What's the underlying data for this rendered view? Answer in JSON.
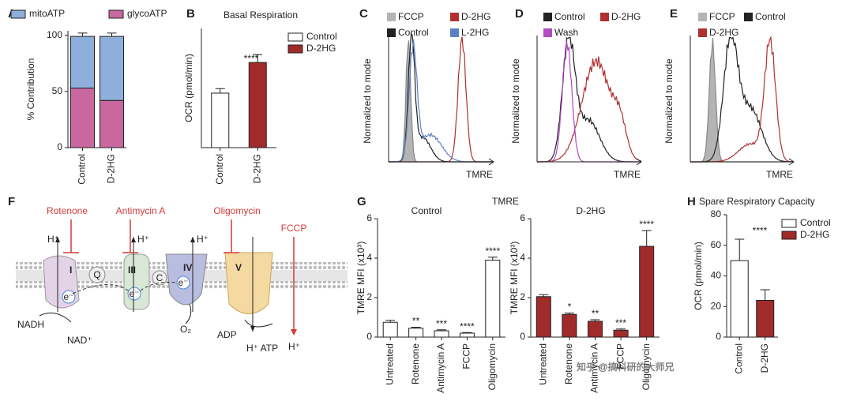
{
  "chart_data": [
    {
      "type": "stacked_bar",
      "panel": "A",
      "ylabel": "% Contribution",
      "categories": [
        "Control",
        "D-2HG"
      ],
      "series": [
        {
          "name": "glycoATP",
          "color": "#c9679f",
          "values": [
            53,
            42
          ],
          "errors": [
            4,
            3
          ]
        },
        {
          "name": "mitoATP",
          "color": "#8eaedb",
          "values": [
            46,
            57
          ],
          "errors": [
            3,
            3
          ]
        }
      ],
      "ylim": [
        0,
        104
      ],
      "yticks": [
        0,
        50,
        100
      ]
    },
    {
      "type": "bar",
      "panel": "B",
      "title": "Basal Respiration",
      "ylabel": "OCR (pmol/min)",
      "categories": [
        "Control",
        "D-2HG"
      ],
      "series": [
        {
          "name": "Control",
          "color": "#ffffff",
          "values": [
            48,
            null
          ],
          "errors": [
            4,
            null
          ]
        },
        {
          "name": "D-2HG",
          "color": "#a12a2a",
          "values": [
            null,
            75
          ],
          "errors": [
            null,
            7
          ]
        }
      ],
      "annotation": "****",
      "ylim": [
        0,
        105
      ]
    },
    {
      "type": "bar",
      "panel": "G",
      "supertitle": "TMRE",
      "title": "Control",
      "ylabel": "TMRE MFI (x10³)",
      "categories": [
        "Untreated",
        "Rotenone",
        "Antimycin A",
        "FCCP",
        "Oligomycin"
      ],
      "color": "#ffffff",
      "values": [
        0.75,
        0.45,
        0.32,
        0.2,
        3.9
      ],
      "errors": [
        0.1,
        0.05,
        0.05,
        0.03,
        0.15
      ],
      "annotations": [
        null,
        "**",
        "***",
        "****",
        "****"
      ],
      "ylim": [
        0,
        6
      ],
      "yticks": [
        0,
        2,
        4,
        6
      ]
    },
    {
      "type": "bar",
      "title": "D-2HG",
      "ylabel": "TMRE MFI (x10³)",
      "categories": [
        "Untreated",
        "Rotenone",
        "Antimycin A",
        "FCCP",
        "Oligomycin"
      ],
      "color": "#a12a2a",
      "values": [
        2.05,
        1.15,
        0.8,
        0.35,
        4.6
      ],
      "errors": [
        0.1,
        0.07,
        0.08,
        0.06,
        0.8
      ],
      "annotations": [
        null,
        "*",
        "**",
        "***",
        "****"
      ],
      "ylim": [
        0,
        6
      ],
      "yticks": [
        0,
        2,
        4,
        6
      ]
    },
    {
      "type": "bar",
      "panel": "H",
      "title": "Spare Respiratory Capacity",
      "ylabel": "OCR (pmol/min)",
      "categories": [
        "Control",
        "D-2HG"
      ],
      "series": [
        {
          "name": "Control",
          "color": "#ffffff",
          "values": [
            50,
            null
          ],
          "errors": [
            14,
            null
          ]
        },
        {
          "name": "D-2HG",
          "color": "#a12a2a",
          "values": [
            null,
            24
          ],
          "errors": [
            null,
            7
          ]
        }
      ],
      "annotation": "****",
      "ylim": [
        0,
        80
      ],
      "yticks": [
        0,
        20,
        40,
        60,
        80
      ]
    }
  ],
  "histograms": [
    {
      "panel": "C",
      "ylabel": "Normalized to mode",
      "xlabel": "TMRE",
      "series": [
        {
          "name": "FCCP",
          "color": "#b4b4b4"
        },
        {
          "name": "D-2HG",
          "color": "#b03030"
        },
        {
          "name": "Control",
          "color": "#222222"
        },
        {
          "name": "L-2HG",
          "color": "#5b80c6"
        }
      ]
    },
    {
      "panel": "D",
      "ylabel": "Normalized to mode",
      "xlabel": "TMRE",
      "series": [
        {
          "name": "Control",
          "color": "#222222"
        },
        {
          "name": "D-2HG",
          "color": "#b03030"
        },
        {
          "name": "Wash",
          "color": "#b24cc0"
        }
      ]
    },
    {
      "panel": "E",
      "ylabel": "Normalized to mode",
      "xlabel": "TMRE",
      "series": [
        {
          "name": "FCCP",
          "color": "#b4b4b4"
        },
        {
          "name": "Control",
          "color": "#222222"
        },
        {
          "name": "D-2HG",
          "color": "#b03030"
        }
      ]
    }
  ],
  "diagram": {
    "panel": "F",
    "rotenone": "Rotenone",
    "antimycin": "Antimycin A",
    "oligomycin": "Oligomycin",
    "fccp": "FCCP",
    "hplus": [
      "H⁺",
      "H⁺",
      "H⁺",
      "H⁺"
    ],
    "complexes": [
      "I",
      "III",
      "IV",
      "V"
    ],
    "carriers": [
      "Q",
      "C"
    ],
    "electrons": [
      "e⁻",
      "e⁻",
      "e⁻"
    ],
    "nadh": "NADH",
    "nad": "NAD⁺",
    "o2": "O₂",
    "adp": "ADP",
    "atp": "H⁺ ATP"
  },
  "watermark": "知乎 @搞科研的大师兄"
}
